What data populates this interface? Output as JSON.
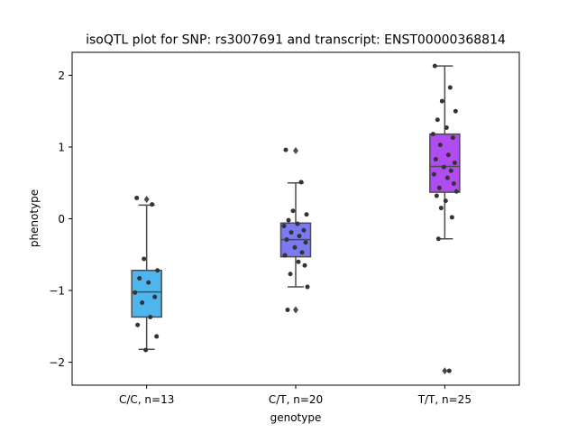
{
  "chart_data": {
    "type": "box",
    "title": "isoQTL plot for SNP: rs3007691 and transcript: ENST00000368814",
    "xlabel": "genotype",
    "ylabel": "phenotype",
    "ylim": [
      -2.32,
      2.32
    ],
    "yticks": [
      {
        "value": 2,
        "label": "2"
      },
      {
        "value": 1,
        "label": "1"
      },
      {
        "value": 0,
        "label": "0"
      },
      {
        "value": -1,
        "label": "−1"
      },
      {
        "value": -2,
        "label": "−2"
      }
    ],
    "grid": false,
    "colors": {
      "box_line": "#4c4c4c",
      "point": "#333333",
      "outlier": "#4c4c4c"
    },
    "groups": [
      {
        "label": "C/C, n=13",
        "color": "#4db6ee",
        "box": {
          "q1": -1.37,
          "median": -1.02,
          "q3": -0.72,
          "whisker_low": -1.82,
          "whisker_high": 0.19
        },
        "outliers": [
          0.27
        ],
        "points": [
          0.29,
          0.2,
          -0.56,
          -0.72,
          -0.83,
          -0.89,
          -1.03,
          -1.09,
          -1.17,
          -1.37,
          -1.48,
          -1.64,
          -1.83
        ]
      },
      {
        "label": "C/T, n=20",
        "color": "#7b7af0",
        "box": {
          "q1": -0.53,
          "median": -0.29,
          "q3": -0.06,
          "whisker_low": -0.95,
          "whisker_high": 0.5
        },
        "outliers": [
          0.95,
          -1.27
        ],
        "points": [
          0.96,
          0.51,
          0.11,
          0.06,
          -0.02,
          -0.07,
          -0.1,
          -0.16,
          -0.19,
          -0.24,
          -0.29,
          -0.33,
          -0.4,
          -0.47,
          -0.51,
          -0.6,
          -0.65,
          -0.77,
          -0.95,
          -1.27
        ]
      },
      {
        "label": "T/T, n=25",
        "color": "#b04cf0",
        "box": {
          "q1": 0.37,
          "median": 0.73,
          "q3": 1.18,
          "whisker_low": -0.28,
          "whisker_high": 2.13
        },
        "outliers": [
          -2.12
        ],
        "points": [
          2.13,
          1.83,
          1.64,
          1.5,
          1.38,
          1.27,
          1.18,
          1.13,
          1.03,
          0.89,
          0.83,
          0.78,
          0.72,
          0.67,
          0.62,
          0.57,
          0.49,
          0.43,
          0.38,
          0.32,
          0.25,
          0.15,
          0.02,
          -0.28,
          -2.12
        ]
      }
    ]
  }
}
